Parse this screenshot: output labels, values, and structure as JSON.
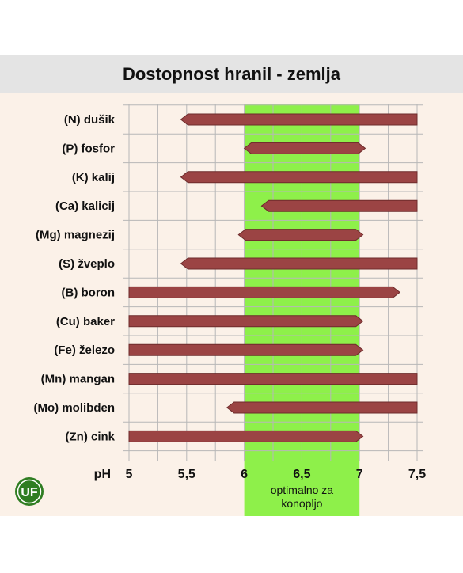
{
  "chart_data": {
    "type": "bar",
    "subtype": "horizontal-range",
    "title": "Dostopnost hranil - zemlja",
    "xlabel": "pH",
    "ylabel": "",
    "xlim": [
      5,
      7.5
    ],
    "xticks": [
      "5",
      "5,5",
      "6",
      "6,5",
      "7",
      "7,5"
    ],
    "minor_grid_step": 0.25,
    "grid": true,
    "categories": [
      "(N) dušik",
      "(P) fosfor",
      "(K) kalij",
      "(Ca) kalicij",
      "(Mg) magnezij",
      "(S) žveplo",
      "(B) boron",
      "(Cu) baker",
      "(Fe) železo",
      "(Mn) mangan",
      "(Mo) molibden",
      "(Zn) cink"
    ],
    "ranges": [
      {
        "start": 5.45,
        "end": 7.5,
        "start_arrow": true,
        "end_arrow": false
      },
      {
        "start": 6.0,
        "end": 7.05,
        "start_arrow": true,
        "end_arrow": true
      },
      {
        "start": 5.45,
        "end": 7.5,
        "start_arrow": true,
        "end_arrow": false
      },
      {
        "start": 6.15,
        "end": 7.5,
        "start_arrow": true,
        "end_arrow": false
      },
      {
        "start": 5.95,
        "end": 7.03,
        "start_arrow": true,
        "end_arrow": true
      },
      {
        "start": 5.45,
        "end": 7.5,
        "start_arrow": true,
        "end_arrow": false
      },
      {
        "start": 5.0,
        "end": 7.35,
        "start_arrow": false,
        "end_arrow": true
      },
      {
        "start": 5.0,
        "end": 7.03,
        "start_arrow": false,
        "end_arrow": true
      },
      {
        "start": 5.0,
        "end": 7.03,
        "start_arrow": false,
        "end_arrow": true
      },
      {
        "start": 5.0,
        "end": 7.5,
        "start_arrow": false,
        "end_arrow": false
      },
      {
        "start": 5.85,
        "end": 7.5,
        "start_arrow": true,
        "end_arrow": false
      },
      {
        "start": 5.0,
        "end": 7.03,
        "start_arrow": false,
        "end_arrow": true
      }
    ],
    "optimal_range": {
      "start": 6.0,
      "end": 7.0,
      "label_line1": "optimalno za",
      "label_line2": "konopljo"
    },
    "colors": {
      "bar": "#9b4444",
      "bar_stroke": "#6e2b2b",
      "optimal": "#8ef04a",
      "grid": "#b7b7b7",
      "background": "#fbf1e8"
    }
  },
  "logo": {
    "text": "UF",
    "color": "#2f7d22"
  }
}
